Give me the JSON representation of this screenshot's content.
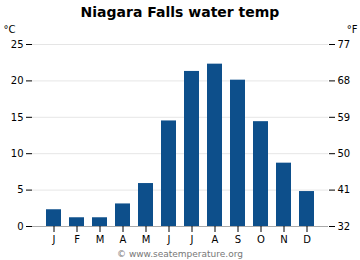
{
  "chart_data": {
    "type": "bar",
    "title": "Niagara Falls water temp",
    "categories": [
      "J",
      "F",
      "M",
      "A",
      "M",
      "J",
      "J",
      "A",
      "S",
      "O",
      "N",
      "D"
    ],
    "values": [
      2.3,
      1.2,
      1.2,
      3.1,
      5.9,
      14.5,
      21.3,
      22.3,
      20.1,
      14.4,
      8.7,
      4.8
    ],
    "color": "#0d4f8b",
    "ylabel": "°C",
    "y2label": "°F",
    "ylim": [
      0,
      25
    ],
    "yticks": [
      0,
      5,
      10,
      15,
      20,
      25
    ],
    "y2lim": [
      32,
      77
    ],
    "y2ticks": [
      32,
      41,
      50,
      59,
      68,
      77
    ],
    "grid": true,
    "annotation": "© www.seatemperature.org"
  }
}
